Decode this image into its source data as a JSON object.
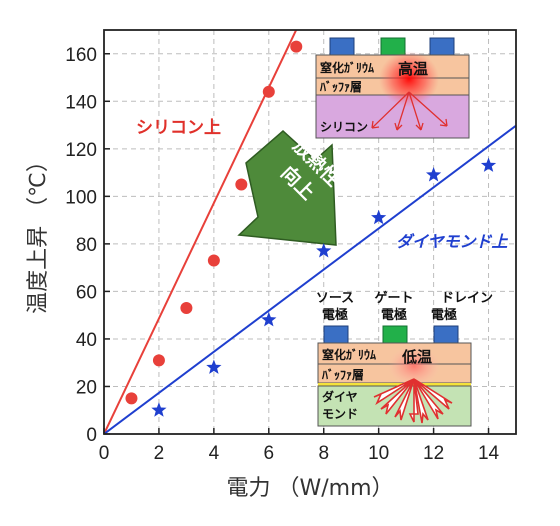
{
  "chart_data": {
    "type": "scatter",
    "xlabel": "電力 （W/mm）",
    "ylabel": "温度上昇 （℃）",
    "xlim": [
      0,
      15
    ],
    "ylim": [
      0,
      170
    ],
    "x_ticks": [
      0,
      2,
      4,
      6,
      8,
      10,
      12,
      14
    ],
    "y_ticks": [
      0,
      20,
      40,
      60,
      80,
      100,
      120,
      140,
      160
    ],
    "grid": true,
    "series": [
      {
        "name": "シリコン上",
        "color": "#e8403a",
        "marker": "circle",
        "x": [
          1,
          2,
          3,
          4,
          5,
          6,
          7
        ],
        "y": [
          15,
          31,
          53,
          73,
          105,
          144,
          163
        ],
        "fit_slope": 24.3
      },
      {
        "name": "ダイヤモンド上",
        "color": "#1f3fcf",
        "marker": "star",
        "x": [
          2,
          4,
          6,
          8,
          10,
          12,
          14
        ],
        "y": [
          10,
          28,
          48,
          77,
          91,
          109,
          113
        ],
        "fit_slope": 8.65
      }
    ],
    "annotations": {
      "arrow_text": [
        "放熱性",
        "向上"
      ],
      "top_inset": {
        "layer1": "窒化ｶﾞﾘｳﾑ",
        "layer2": "ﾊﾞｯﾌｧ層",
        "substrate": "シリコン",
        "hot": "高温"
      },
      "bottom_inset": {
        "electrodes": [
          [
            "ソース",
            "電極"
          ],
          [
            "ゲート",
            "電極"
          ],
          [
            "ドレイン",
            "電極"
          ]
        ],
        "layer1": "窒化ｶﾞﾘｳﾑ",
        "layer2": "ﾊﾞｯﾌｧ層",
        "substrate": [
          "ダイヤ",
          "モンド"
        ],
        "hot": "低温"
      }
    }
  }
}
